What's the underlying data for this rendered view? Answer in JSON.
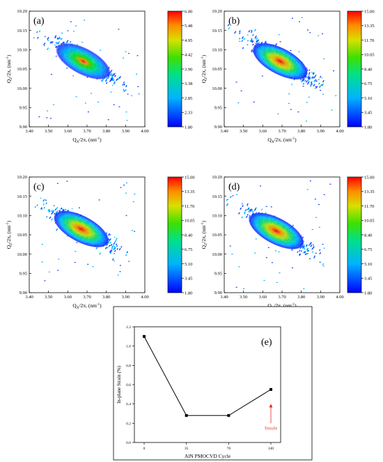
{
  "chart_data": [
    {
      "type": "heatmap",
      "panel_label": "(a)",
      "xlabel_main": "Q",
      "xlabel_sub": "X",
      "xlabel_rest": "/2π, (nm",
      "xlabel_sup": "-1",
      "xlabel_end": ")",
      "ylabel_main": "Q",
      "ylabel_sub": "Z",
      "ylabel_rest": "/2π, (nm",
      "ylabel_sup": "-1",
      "ylabel_end": ")",
      "xlim": [
        3.4,
        4.0
      ],
      "ylim": [
        9.9,
        10.2
      ],
      "x_ticks": [
        "3.40",
        "3.50",
        "3.60",
        "3.70",
        "3.80",
        "3.90",
        "4.00"
      ],
      "y_ticks": [
        "9.90",
        "9.95",
        "10.00",
        "10.05",
        "10.10",
        "10.15",
        "10.20"
      ],
      "colorbar_ticks": [
        "6.00",
        "5.48",
        "4.95",
        "4.42",
        "3.90",
        "3.38",
        "2.85",
        "2.33",
        "1.80"
      ],
      "colorbar_range": [
        1.8,
        6.0
      ],
      "peak": {
        "x": 3.68,
        "y": 10.07
      }
    },
    {
      "type": "heatmap",
      "panel_label": "(b)",
      "xlabel_main": "Q",
      "xlabel_sub": "X",
      "xlabel_rest": "/2π, (nm",
      "xlabel_sup": "-1",
      "xlabel_end": ")",
      "ylabel_main": "Q",
      "ylabel_sub": "Z",
      "ylabel_rest": "/2π, (nm",
      "ylabel_sup": "-1",
      "ylabel_end": ")",
      "xlim": [
        3.4,
        4.0
      ],
      "ylim": [
        9.9,
        10.2
      ],
      "x_ticks": [
        "3.40",
        "3.50",
        "3.60",
        "3.70",
        "3.80",
        "3.90",
        "4.00"
      ],
      "y_ticks": [
        "9.90",
        "9.95",
        "10.00",
        "10.05",
        "10.10",
        "10.15",
        "10.20"
      ],
      "colorbar_ticks": [
        "15.00",
        "13.35",
        "11.70",
        "10.05",
        "8.40",
        "6.75",
        "5.10",
        "3.45",
        "1.80"
      ],
      "colorbar_range": [
        1.8,
        15.0
      ],
      "peak": {
        "x": 3.69,
        "y": 10.07
      }
    },
    {
      "type": "heatmap",
      "panel_label": "(c)",
      "xlabel_main": "Q",
      "xlabel_sub": "X",
      "xlabel_rest": "/2π, (nm",
      "xlabel_sup": "-1",
      "xlabel_end": ")",
      "ylabel_main": "Q",
      "ylabel_sub": "Z",
      "ylabel_rest": "/2π, (nm",
      "ylabel_sup": "-1",
      "ylabel_end": ")",
      "xlim": [
        3.4,
        4.0
      ],
      "ylim": [
        9.9,
        10.2
      ],
      "x_ticks": [
        "3.40",
        "3.50",
        "3.60",
        "3.70",
        "3.80",
        "3.90",
        "4.00"
      ],
      "y_ticks": [
        "9.90",
        "9.95",
        "10.00",
        "10.05",
        "10.10",
        "10.15",
        "10.20"
      ],
      "colorbar_ticks": [
        "15.00",
        "13.35",
        "11.70",
        "10.05",
        "8.40",
        "6.75",
        "5.10",
        "3.45",
        "1.80"
      ],
      "colorbar_range": [
        1.8,
        15.0
      ],
      "peak": {
        "x": 3.67,
        "y": 10.065
      }
    },
    {
      "type": "heatmap",
      "panel_label": "(d)",
      "xlabel_main": "Q",
      "xlabel_sub": "X",
      "xlabel_rest": "/2π, (nm",
      "xlabel_sup": "-1",
      "xlabel_end": ")",
      "ylabel_main": "Q",
      "ylabel_sub": "Z",
      "ylabel_rest": "/2π, (nm",
      "ylabel_sup": "-1",
      "ylabel_end": ")",
      "xlim": [
        3.4,
        4.0
      ],
      "ylim": [
        9.9,
        10.2
      ],
      "x_ticks": [
        "3.40",
        "3.50",
        "3.60",
        "3.70",
        "3.80",
        "3.90",
        "4.00"
      ],
      "y_ticks": [
        "9.90",
        "9.95",
        "10.00",
        "10.05",
        "10.10",
        "10.15",
        "10.20"
      ],
      "colorbar_ticks": [
        "15.00",
        "13.35",
        "11.70",
        "10.05",
        "8.40",
        "6.75",
        "5.10",
        "3.45",
        "1.80"
      ],
      "colorbar_range": [
        1.8,
        15.0
      ],
      "peak": {
        "x": 3.67,
        "y": 10.06
      }
    },
    {
      "type": "line",
      "panel_label": "(e)",
      "xlabel": "AlN PMOCVD Cycle",
      "ylabel": "In-plane Strain (%)",
      "x": [
        0,
        35,
        70,
        140
      ],
      "y": [
        1.1,
        0.28,
        0.28,
        0.55
      ],
      "x_ticks": [
        "0",
        "35",
        "70",
        "140"
      ],
      "y_ticks": [
        "0.0",
        "0.2",
        "0.4",
        "0.6",
        "0.8",
        "1.0",
        "1.2"
      ],
      "ylim": [
        0,
        1.2
      ],
      "annotation": {
        "text": "Tensile",
        "x": 140,
        "y_from": 0.2,
        "y_to": 0.4,
        "color": "#e0281c"
      },
      "marker": "square",
      "line_color": "#000000"
    }
  ]
}
